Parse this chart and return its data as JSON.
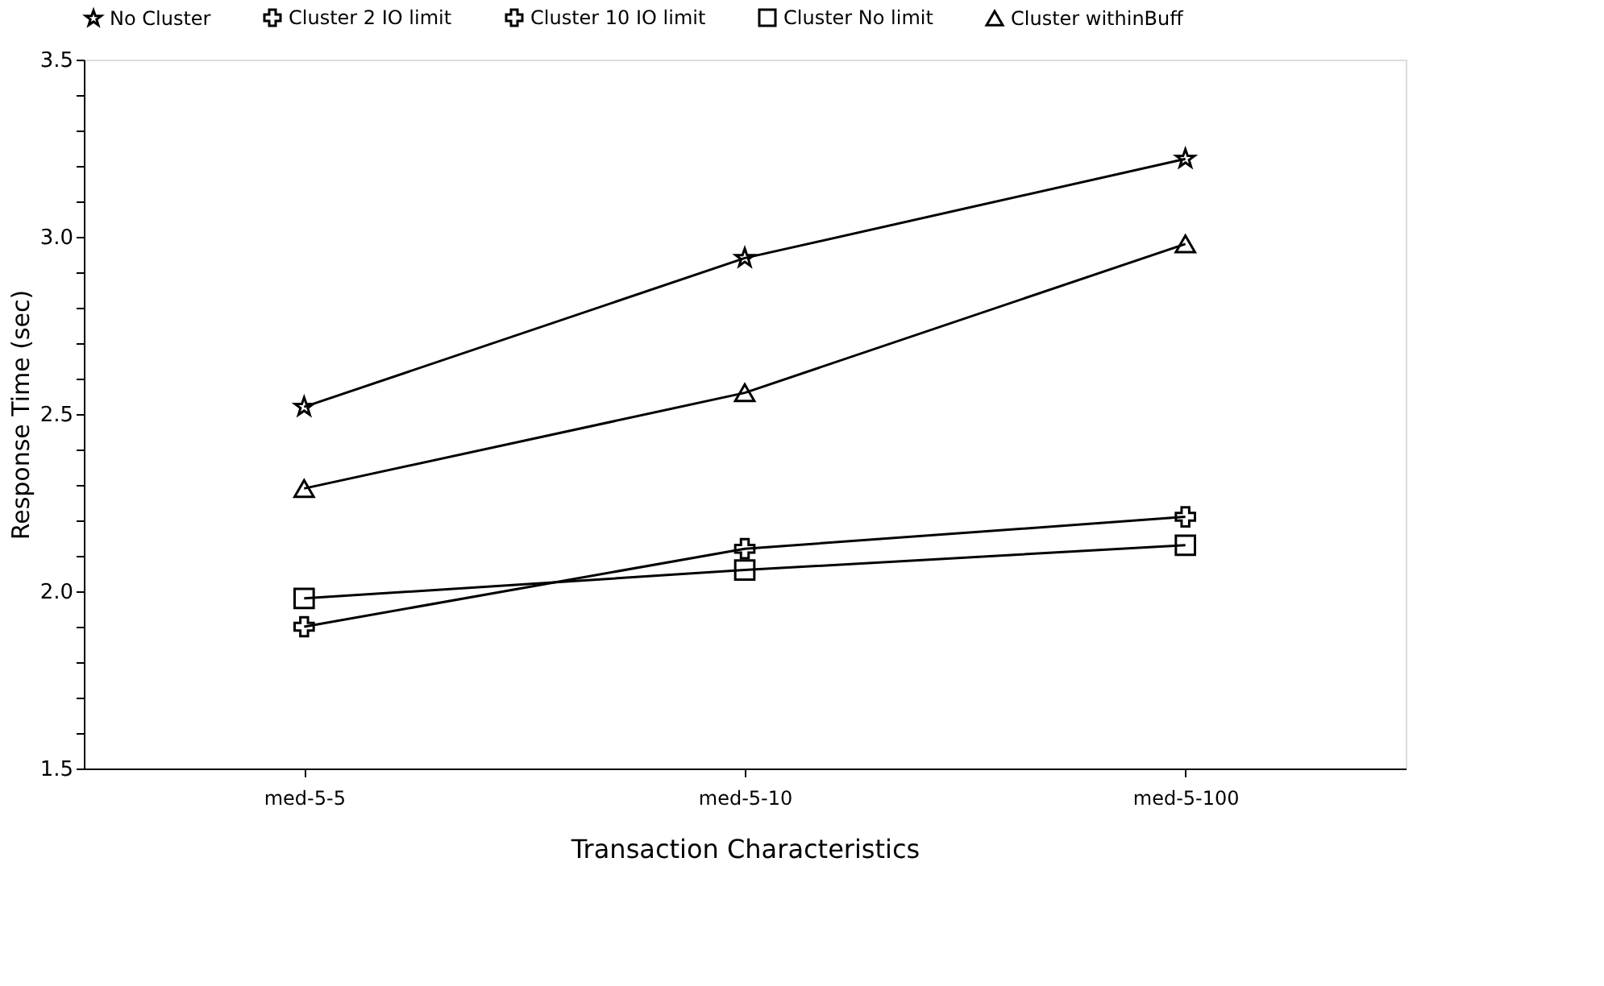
{
  "chart_data": {
    "type": "line",
    "xlabel": "Transaction Characteristics",
    "ylabel": "Response Time (sec)",
    "categories": [
      "med-5-5",
      "med-5-10",
      "med-5-100"
    ],
    "series": [
      {
        "name": "No Cluster",
        "color": "#000000",
        "marker": "star",
        "values": [
          2.52,
          2.94,
          3.22
        ]
      },
      {
        "name": "Cluster 2 IO limit",
        "color": "#000000",
        "marker": "cross",
        "values": [
          1.9,
          2.12,
          2.21
        ]
      },
      {
        "name": "Cluster 10 IO limit",
        "color": "#000000",
        "marker": "cross",
        "values": [
          null,
          null,
          null
        ]
      },
      {
        "name": "Cluster No limit",
        "color": "#000000",
        "marker": "square",
        "values": [
          1.98,
          2.06,
          2.13
        ]
      },
      {
        "name": "Cluster withinBuff",
        "color": "#000000",
        "marker": "triangle",
        "values": [
          2.29,
          2.56,
          2.98
        ]
      }
    ],
    "ylim": [
      1.5,
      3.5
    ],
    "yticks": [
      1.5,
      {
        "value": 1.6,
        "label": null
      },
      {
        "value": 1.7,
        "label": null
      },
      {
        "value": 1.8,
        "label": null
      },
      {
        "value": 1.9,
        "label": null
      },
      {
        "value": 2,
        "label": "2.0"
      },
      {
        "value": 2.1,
        "label": null
      },
      {
        "value": 2.2,
        "label": null
      },
      {
        "value": 2.3,
        "label": null
      },
      {
        "value": 2.4,
        "label": null
      },
      2.5,
      {
        "value": 2.6,
        "label": null
      },
      {
        "value": 2.7,
        "label": null
      },
      {
        "value": 2.8,
        "label": null
      },
      {
        "value": 2.9,
        "label": null
      },
      {
        "value": 3,
        "label": "3.0"
      },
      {
        "value": 3.1,
        "label": null
      },
      {
        "value": 3.2,
        "label": null
      },
      {
        "value": 3.3,
        "label": null
      },
      {
        "value": 3.4,
        "label": null
      },
      3.5
    ],
    "grid": false,
    "legend": "top",
    "line_style": "solid"
  }
}
